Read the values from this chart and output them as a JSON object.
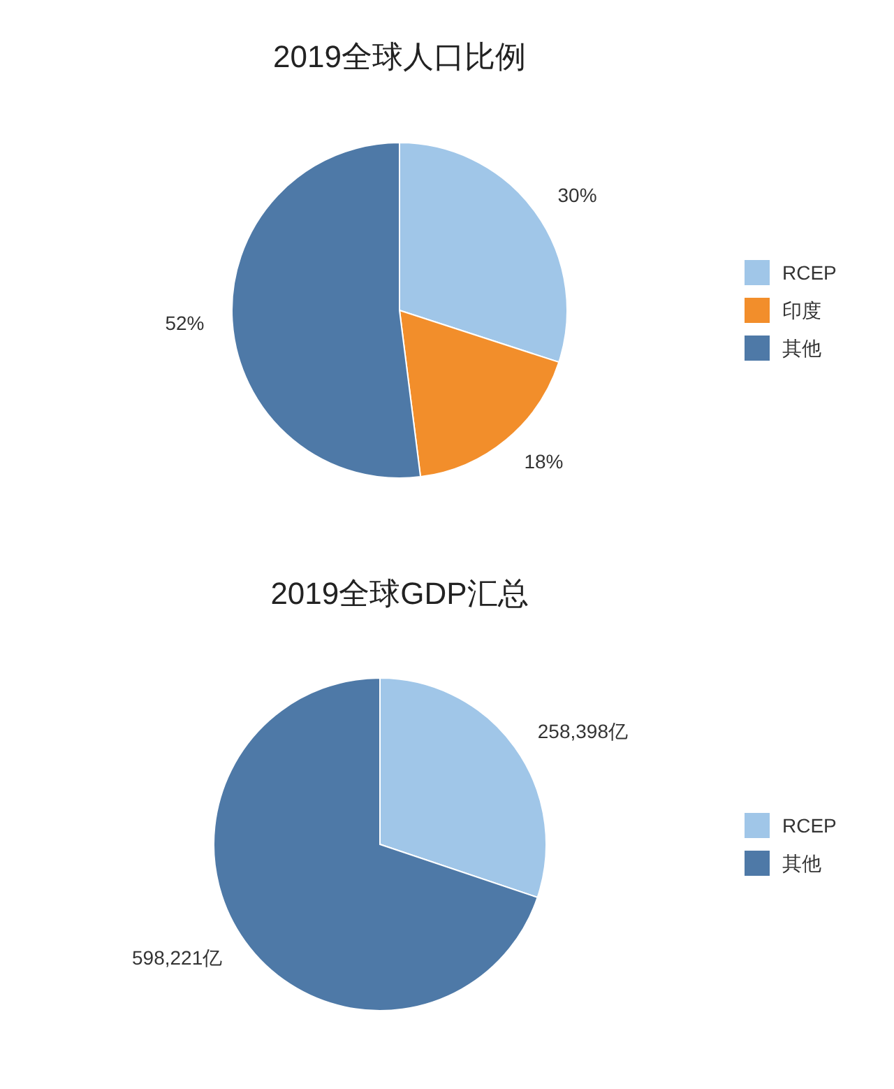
{
  "chart_data": [
    {
      "type": "pie",
      "title": "2019全球人口比例",
      "categories": [
        "RCEP",
        "印度",
        "其他"
      ],
      "values": [
        30,
        18,
        52
      ],
      "colors": [
        "#a0c6e8",
        "#f28e2b",
        "#4e79a7"
      ],
      "value_labels": [
        "30%",
        "18%",
        "52%"
      ],
      "legend": "right"
    },
    {
      "type": "pie",
      "title": "2019全球GDP汇总",
      "categories": [
        "RCEP",
        "其他"
      ],
      "values": [
        258398,
        598221
      ],
      "colors": [
        "#a0c6e8",
        "#4e79a7"
      ],
      "value_labels": [
        "258,398亿",
        "598,221亿"
      ],
      "legend": "right"
    }
  ]
}
